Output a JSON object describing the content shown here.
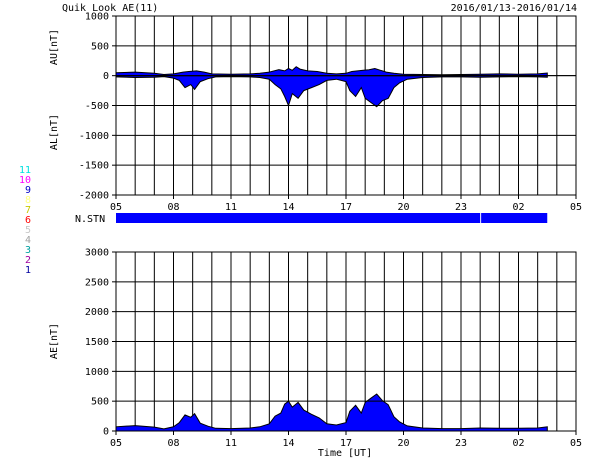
{
  "header": {
    "title": "Quik Look AE(11)",
    "date_range": "2016/01/13-2016/01/14"
  },
  "colors": {
    "fill": "#0000ff",
    "axis": "#000000",
    "background": "#ffffff"
  },
  "station_legend": [
    {
      "label": "11",
      "color": "#00e0e0"
    },
    {
      "label": "10",
      "color": "#ff00ff"
    },
    {
      "label": "9",
      "color": "#0000c8"
    },
    {
      "label": "8",
      "color": "#ffff80"
    },
    {
      "label": "7",
      "color": "#c8c800"
    },
    {
      "label": "6",
      "color": "#ff0000"
    },
    {
      "label": "5",
      "color": "#c8c8c8"
    },
    {
      "label": "4",
      "color": "#a0a0a0"
    },
    {
      "label": "3",
      "color": "#00a0a0"
    },
    {
      "label": "2",
      "color": "#a000a0"
    },
    {
      "label": "1",
      "color": "#0000a0"
    }
  ],
  "chart_data": [
    {
      "type": "area",
      "name": "AU/AL",
      "ylabel_top": "AU[nT]",
      "ylabel_bottom": "AL[nT]",
      "ylim": [
        -2000,
        1000
      ],
      "yticks": [
        "1000",
        "500",
        "0",
        "-500",
        "-1000",
        "-1500",
        "-2000"
      ],
      "xticks": [
        "05",
        "08",
        "11",
        "14",
        "17",
        "20",
        "23",
        "02",
        "05"
      ],
      "xlim_hours": [
        5,
        29
      ],
      "grid": true,
      "upper": {
        "name": "AU",
        "x": [
          5,
          6,
          7,
          7.5,
          8,
          8.5,
          8.8,
          9.2,
          9.6,
          10,
          11,
          12,
          12.5,
          13,
          13.5,
          13.8,
          14,
          14.2,
          14.4,
          14.6,
          15,
          15.5,
          16,
          16.5,
          17,
          17.3,
          17.6,
          17.9,
          18.2,
          18.5,
          18.8,
          19.1,
          19.5,
          20,
          21,
          22,
          23,
          24,
          25,
          26,
          27,
          27.5
        ],
        "y": [
          50,
          60,
          40,
          20,
          30,
          60,
          70,
          80,
          60,
          30,
          25,
          30,
          40,
          60,
          100,
          80,
          120,
          90,
          150,
          110,
          80,
          70,
          40,
          30,
          40,
          70,
          80,
          90,
          100,
          120,
          90,
          60,
          40,
          25,
          20,
          15,
          20,
          25,
          30,
          25,
          30,
          45
        ]
      },
      "lower": {
        "name": "AL",
        "x": [
          5,
          6,
          7,
          7.5,
          8,
          8.3,
          8.6,
          8.9,
          9.1,
          9.4,
          9.8,
          10.2,
          11,
          12,
          12.5,
          13,
          13.3,
          13.6,
          13.8,
          14,
          14.2,
          14.5,
          14.8,
          15.2,
          15.6,
          16,
          16.5,
          17,
          17.2,
          17.5,
          17.8,
          18,
          18.3,
          18.6,
          18.9,
          19.2,
          19.5,
          19.8,
          20.2,
          21,
          22,
          23,
          24,
          25,
          26,
          27,
          27.5
        ],
        "y": [
          -20,
          -30,
          -25,
          -15,
          -40,
          -80,
          -200,
          -150,
          -230,
          -100,
          -50,
          -20,
          -15,
          -20,
          -30,
          -60,
          -150,
          -220,
          -350,
          -500,
          -300,
          -380,
          -250,
          -200,
          -150,
          -80,
          -60,
          -100,
          -250,
          -350,
          -200,
          -380,
          -450,
          -520,
          -420,
          -380,
          -200,
          -120,
          -60,
          -30,
          -20,
          -20,
          -25,
          -20,
          -15,
          -20,
          -25
        ]
      }
    },
    {
      "type": "bar",
      "name": "N.STN",
      "label": "N.STN",
      "segments": [
        {
          "start": 5,
          "end": 24
        },
        {
          "start": 24.05,
          "end": 27.5
        }
      ]
    },
    {
      "type": "area",
      "name": "AE",
      "ylabel": "AE[nT]",
      "xlabel": "Time [UT]",
      "ylim": [
        0,
        3000
      ],
      "yticks": [
        "3000",
        "2500",
        "2000",
        "1500",
        "1000",
        "500",
        "0"
      ],
      "xticks": [
        "05",
        "08",
        "11",
        "14",
        "17",
        "20",
        "23",
        "02",
        "05"
      ],
      "xlim_hours": [
        5,
        29
      ],
      "grid": true,
      "x": [
        5,
        6,
        7,
        7.5,
        8,
        8.3,
        8.6,
        8.9,
        9.1,
        9.4,
        9.8,
        10.2,
        11,
        12,
        12.5,
        13,
        13.3,
        13.6,
        13.8,
        14,
        14.2,
        14.5,
        14.8,
        15.2,
        15.6,
        16,
        16.5,
        17,
        17.2,
        17.5,
        17.8,
        18,
        18.3,
        18.6,
        18.9,
        19.2,
        19.5,
        19.8,
        20.2,
        21,
        22,
        23,
        24,
        25,
        26,
        27,
        27.5
      ],
      "y": [
        70,
        90,
        65,
        35,
        70,
        140,
        270,
        230,
        290,
        130,
        80,
        45,
        40,
        50,
        70,
        120,
        250,
        300,
        450,
        500,
        400,
        480,
        350,
        280,
        220,
        120,
        100,
        140,
        330,
        430,
        300,
        480,
        550,
        620,
        510,
        440,
        240,
        150,
        85,
        50,
        40,
        40,
        50,
        45,
        45,
        50,
        70
      ]
    }
  ]
}
